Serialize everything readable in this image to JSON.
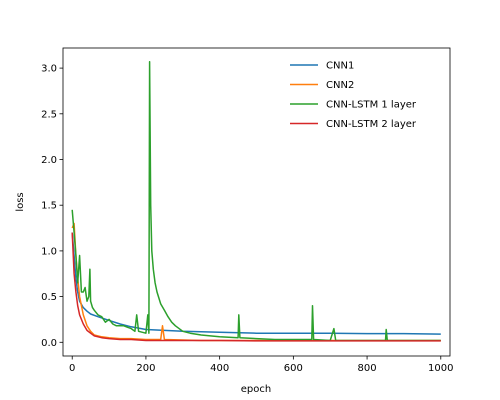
{
  "chart_data": {
    "type": "line",
    "xlabel": "epoch",
    "ylabel": "loss",
    "xlim": [
      -25,
      1025
    ],
    "ylim": [
      -0.15,
      3.22
    ],
    "xticks": [
      0,
      200,
      400,
      600,
      800,
      1000
    ],
    "yticks": [
      0.0,
      0.5,
      1.0,
      1.5,
      2.0,
      2.5,
      3.0
    ],
    "xtick_labels": [
      "0",
      "200",
      "400",
      "600",
      "800",
      "1000"
    ],
    "ytick_labels": [
      "0.0",
      "0.5",
      "1.0",
      "1.5",
      "2.0",
      "2.5",
      "3.0"
    ],
    "grid": false,
    "legend_position": "top-right",
    "series": [
      {
        "name": "CNN1",
        "color": "#1f77b4",
        "x": [
          0,
          5,
          10,
          15,
          20,
          30,
          40,
          50,
          70,
          100,
          130,
          160,
          200,
          250,
          300,
          400,
          500,
          600,
          700,
          800,
          900,
          1000
        ],
        "y": [
          1.2,
          0.95,
          0.7,
          0.55,
          0.45,
          0.38,
          0.34,
          0.31,
          0.28,
          0.24,
          0.2,
          0.17,
          0.14,
          0.13,
          0.12,
          0.11,
          0.1,
          0.1,
          0.1,
          0.095,
          0.095,
          0.09
        ]
      },
      {
        "name": "CNN2",
        "color": "#ff7f0e",
        "x": [
          0,
          5,
          10,
          15,
          20,
          30,
          40,
          50,
          60,
          80,
          100,
          130,
          160,
          200,
          240,
          245,
          250,
          300,
          350,
          400,
          500,
          600,
          700,
          800,
          900,
          1000
        ],
        "y": [
          1.25,
          1.3,
          0.95,
          0.7,
          0.5,
          0.3,
          0.18,
          0.12,
          0.08,
          0.06,
          0.05,
          0.04,
          0.04,
          0.03,
          0.03,
          0.18,
          0.03,
          0.025,
          0.02,
          0.02,
          0.02,
          0.02,
          0.02,
          0.02,
          0.02,
          0.02
        ]
      },
      {
        "name": "CNN-LSTM 1 layer",
        "color": "#2ca02c",
        "x": [
          0,
          5,
          10,
          15,
          20,
          25,
          30,
          35,
          40,
          45,
          48,
          50,
          55,
          60,
          70,
          80,
          90,
          100,
          110,
          120,
          140,
          160,
          170,
          175,
          180,
          200,
          205,
          208,
          210,
          213,
          216,
          220,
          225,
          230,
          240,
          250,
          260,
          270,
          280,
          300,
          320,
          350,
          400,
          450,
          452,
          455,
          500,
          550,
          600,
          650,
          652,
          655,
          700,
          710,
          715,
          800,
          850,
          852,
          855,
          900,
          950,
          1000
        ],
        "y": [
          1.45,
          1.2,
          0.95,
          0.65,
          0.95,
          0.55,
          0.55,
          0.6,
          0.45,
          0.5,
          0.8,
          0.45,
          0.38,
          0.35,
          0.3,
          0.28,
          0.22,
          0.25,
          0.2,
          0.18,
          0.18,
          0.15,
          0.12,
          0.3,
          0.12,
          0.1,
          0.3,
          0.1,
          3.07,
          1.5,
          1.0,
          0.8,
          0.65,
          0.55,
          0.42,
          0.35,
          0.28,
          0.22,
          0.18,
          0.12,
          0.1,
          0.08,
          0.06,
          0.05,
          0.3,
          0.05,
          0.04,
          0.03,
          0.03,
          0.03,
          0.4,
          0.03,
          0.02,
          0.15,
          0.02,
          0.02,
          0.02,
          0.14,
          0.02,
          0.02,
          0.02,
          0.02
        ]
      },
      {
        "name": "CNN-LSTM 2 layer",
        "color": "#d62728",
        "x": [
          0,
          5,
          10,
          15,
          20,
          30,
          40,
          50,
          60,
          80,
          100,
          130,
          160,
          200,
          250,
          300,
          400,
          500,
          600,
          700,
          800,
          900,
          1000
        ],
        "y": [
          1.2,
          0.75,
          0.55,
          0.4,
          0.3,
          0.2,
          0.13,
          0.1,
          0.07,
          0.05,
          0.04,
          0.03,
          0.03,
          0.02,
          0.02,
          0.02,
          0.02,
          0.015,
          0.015,
          0.015,
          0.015,
          0.015,
          0.015
        ]
      }
    ]
  }
}
